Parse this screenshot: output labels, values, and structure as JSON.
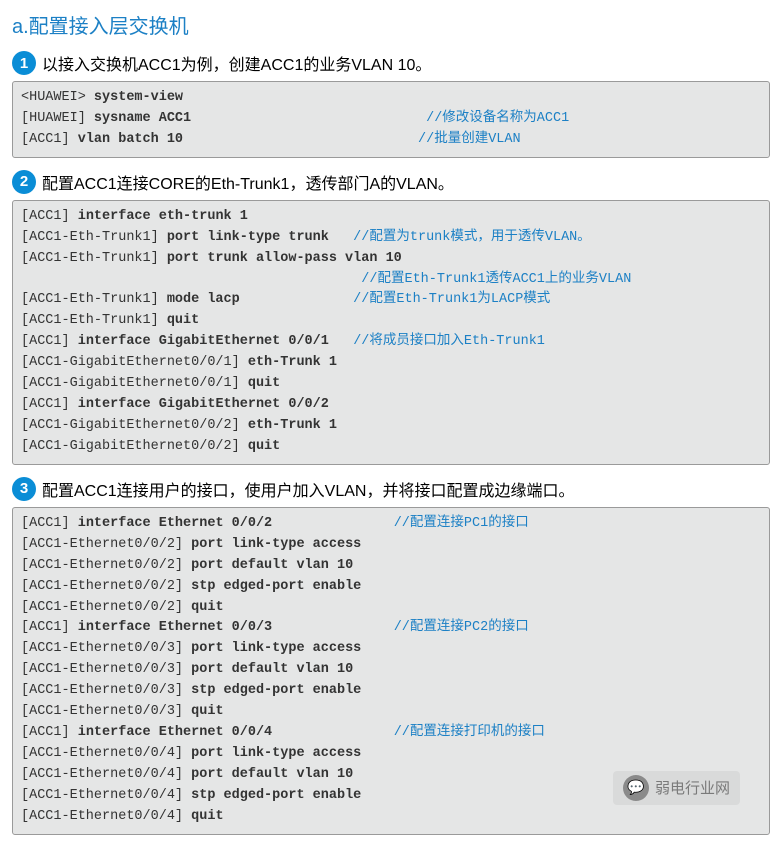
{
  "heading": "a.配置接入层交换机",
  "steps": [
    {
      "num": "1",
      "text": "以接入交换机ACC1为例，创建ACC1的业务VLAN 10。"
    },
    {
      "num": "2",
      "text": "配置ACC1连接CORE的Eth-Trunk1，透传部门A的VLAN。"
    },
    {
      "num": "3",
      "text": "配置ACC1连接用户的接口，使用户加入VLAN，并将接口配置成边缘端口。"
    }
  ],
  "code1": {
    "l1a": "<HUAWEI> ",
    "l1b": "system-view",
    "l2a": "[HUAWEI] ",
    "l2b": "sysname ACC1",
    "l2c": "//修改设备名称为ACC1",
    "l3a": "[ACC1] ",
    "l3b": "vlan batch 10",
    "l3c": "//批量创建VLAN"
  },
  "code2": {
    "l1a": "[ACC1] ",
    "l1b": "interface eth-trunk 1",
    "l2a": "[ACC1-Eth-Trunk1] ",
    "l2b": "port link-type trunk",
    "l2c": "//配置为trunk模式，用于透传VLAN。",
    "l3a": "[ACC1-Eth-Trunk1] ",
    "l3b": "port trunk allow-pass vlan 10",
    "l4c": "//配置Eth-Trunk1透传ACC1上的业务VLAN",
    "l5a": "[ACC1-Eth-Trunk1] ",
    "l5b": "mode lacp",
    "l5c": "//配置Eth-Trunk1为LACP模式",
    "l6a": "[ACC1-Eth-Trunk1] ",
    "l6b": "quit",
    "l7a": "[ACC1] ",
    "l7b": "interface GigabitEthernet 0/0/1",
    "l7c": "//将成员接口加入Eth-Trunk1",
    "l8a": "[ACC1-GigabitEthernet0/0/1] ",
    "l8b": "eth-Trunk 1",
    "l9a": "[ACC1-GigabitEthernet0/0/1] ",
    "l9b": "quit",
    "l10a": "[ACC1] ",
    "l10b": "interface GigabitEthernet 0/0/2",
    "l11a": "[ACC1-GigabitEthernet0/0/2] ",
    "l11b": "eth-Trunk 1",
    "l12a": "[ACC1-GigabitEthernet0/0/2] ",
    "l12b": "quit"
  },
  "code3": {
    "l1a": "[ACC1] ",
    "l1b": "interface Ethernet 0/0/2",
    "l1c": "//配置连接PC1的接口",
    "l2a": "[ACC1-Ethernet0/0/2] ",
    "l2b": "port link-type access",
    "l3a": "[ACC1-Ethernet0/0/2] ",
    "l3b": "port default vlan 10",
    "l4a": "[ACC1-Ethernet0/0/2] ",
    "l4b": "stp edged-port enable",
    "l5a": "[ACC1-Ethernet0/0/2] ",
    "l5b": "quit",
    "l6a": "[ACC1] ",
    "l6b": "interface Ethernet 0/0/3",
    "l6c": "//配置连接PC2的接口",
    "l7a": "[ACC1-Ethernet0/0/3] ",
    "l7b": "port link-type access",
    "l8a": "[ACC1-Ethernet0/0/3] ",
    "l8b": "port default vlan 10",
    "l9a": "[ACC1-Ethernet0/0/3] ",
    "l9b": "stp edged-port enable",
    "l10a": "[ACC1-Ethernet0/0/3] ",
    "l10b": "quit",
    "l11a": "[ACC1] ",
    "l11b": "interface Ethernet 0/0/4",
    "l11c": "//配置连接打印机的接口",
    "l12a": "[ACC1-Ethernet0/0/4] ",
    "l12b": "port link-type access",
    "l13a": "[ACC1-Ethernet0/0/4] ",
    "l13b": "port default vlan 10",
    "l14a": "[ACC1-Ethernet0/0/4] ",
    "l14b": "stp edged-port enable",
    "l15a": "[ACC1-Ethernet0/0/4] ",
    "l15b": "quit"
  },
  "footer": {
    "icon": "💬",
    "text": "弱电行业网"
  },
  "colors": {
    "heading": "#1c80c5",
    "comment": "#1c80c5",
    "badge_bg": "#0a8dd6",
    "code_bg": "#e5e6e6",
    "code_border": "#9a9a9a"
  }
}
